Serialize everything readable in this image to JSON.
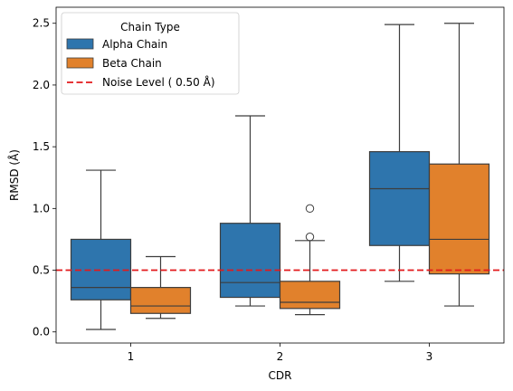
{
  "chart_data": {
    "type": "box",
    "xlabel": "CDR",
    "ylabel": "RMSD (Å)",
    "categories": [
      "1",
      "2",
      "3"
    ],
    "ylim": [
      -0.09,
      2.63
    ],
    "yticks": [
      "0.0",
      "0.5",
      "1.0",
      "1.5",
      "2.0",
      "2.5"
    ],
    "grid": false,
    "legend": {
      "title": "Chain Type",
      "placement": "top-left",
      "entries": [
        "Alpha Chain",
        "Beta Chain",
        "Noise Level ( 0.50 Å)"
      ]
    },
    "series": [
      {
        "name": "Alpha Chain",
        "color": "#2e75ad",
        "boxes": [
          {
            "category": "1",
            "whisker_low": 0.02,
            "q1": 0.26,
            "median": 0.36,
            "q3": 0.75,
            "whisker_high": 1.31,
            "outliers": []
          },
          {
            "category": "2",
            "whisker_low": 0.21,
            "q1": 0.28,
            "median": 0.4,
            "q3": 0.88,
            "whisker_high": 1.75,
            "outliers": []
          },
          {
            "category": "3",
            "whisker_low": 0.41,
            "q1": 0.7,
            "median": 1.16,
            "q3": 1.46,
            "whisker_high": 2.49,
            "outliers": []
          }
        ]
      },
      {
        "name": "Beta Chain",
        "color": "#e1812c",
        "boxes": [
          {
            "category": "1",
            "whisker_low": 0.11,
            "q1": 0.15,
            "median": 0.21,
            "q3": 0.36,
            "whisker_high": 0.61,
            "outliers": []
          },
          {
            "category": "2",
            "whisker_low": 0.14,
            "q1": 0.19,
            "median": 0.24,
            "q3": 0.41,
            "whisker_high": 0.74,
            "outliers": [
              0.77,
              1.0
            ]
          },
          {
            "category": "3",
            "whisker_low": 0.21,
            "q1": 0.47,
            "median": 0.75,
            "q3": 1.36,
            "whisker_high": 2.5,
            "outliers": []
          }
        ]
      }
    ],
    "reference_line": {
      "name": "Noise Level ( 0.50 Å)",
      "y": 0.5,
      "color": "#e3191b",
      "style": "dashed"
    }
  }
}
